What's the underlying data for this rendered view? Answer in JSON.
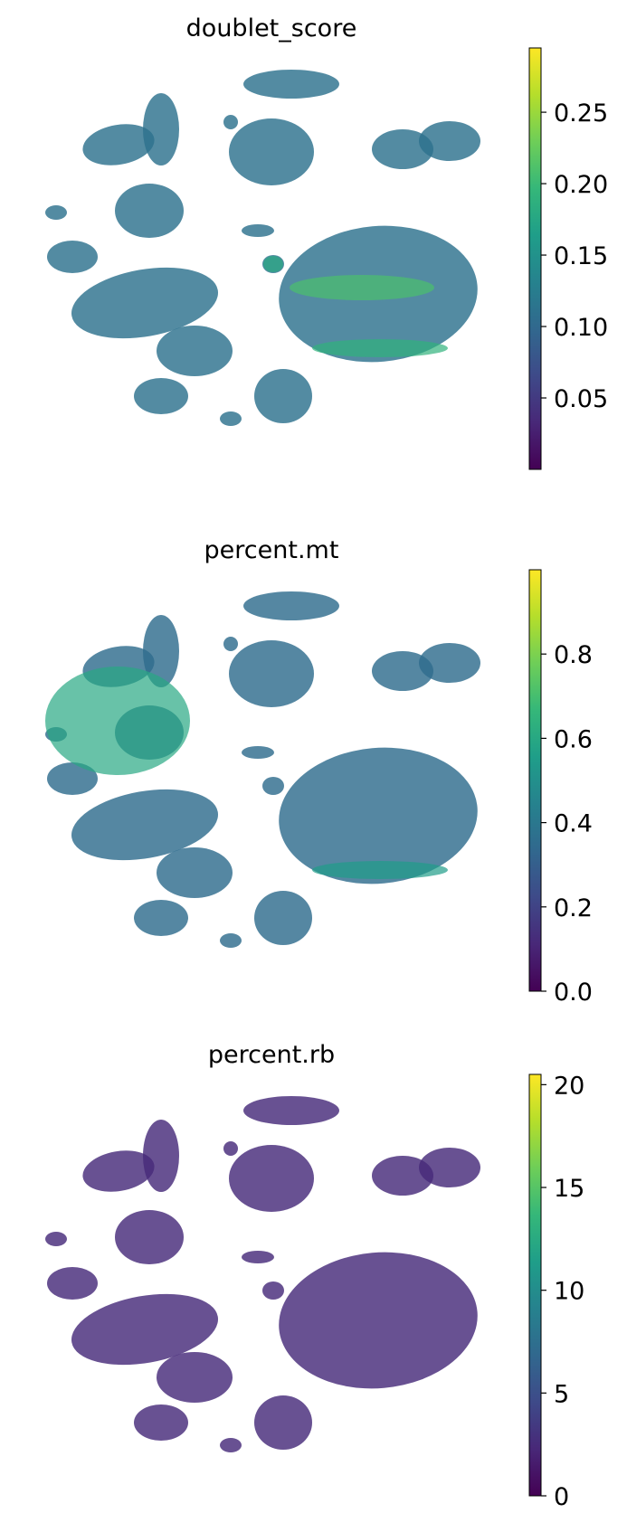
{
  "chart_data": [
    {
      "type": "scatter",
      "subtype": "umap-embedding",
      "title": "doublet_score",
      "colormap": "viridis",
      "colorbar": {
        "min": 0.0,
        "max": 0.295,
        "ticks": [
          "0.05",
          "0.10",
          "0.15",
          "0.20",
          "0.25"
        ],
        "tick_values": [
          0.05,
          0.1,
          0.15,
          0.2,
          0.25
        ]
      },
      "axes_visible": false,
      "legend": "colorbar right",
      "typical_value": 0.11,
      "hotspots": [
        {
          "cluster": "large right cluster center band",
          "value": 0.21
        },
        {
          "cluster": "large right cluster lower rim",
          "value": 0.19
        },
        {
          "cluster": "small cluster left of large cluster",
          "value": 0.18
        }
      ]
    },
    {
      "type": "scatter",
      "subtype": "umap-embedding",
      "title": "percent.mt",
      "colormap": "viridis",
      "colorbar": {
        "min": 0.0,
        "max": 1.0,
        "ticks": [
          "0.0",
          "0.2",
          "0.4",
          "0.6",
          "0.8"
        ],
        "tick_values": [
          0.0,
          0.2,
          0.4,
          0.6,
          0.8
        ]
      },
      "axes_visible": false,
      "legend": "colorbar right",
      "typical_value": 0.35,
      "hotspots": [
        {
          "cluster": "left clusters",
          "value": 0.6
        },
        {
          "cluster": "large right cluster lower rim",
          "value": 0.55
        }
      ]
    },
    {
      "type": "scatter",
      "subtype": "umap-embedding",
      "title": "percent.rb",
      "colormap": "viridis",
      "colorbar": {
        "min": 0.0,
        "max": 20.5,
        "ticks": [
          "0",
          "5",
          "10",
          "15",
          "20"
        ],
        "tick_values": [
          0,
          5,
          10,
          15,
          20
        ]
      },
      "axes_visible": false,
      "legend": "colorbar right",
      "typical_value": 2.5,
      "hotspots": []
    }
  ]
}
